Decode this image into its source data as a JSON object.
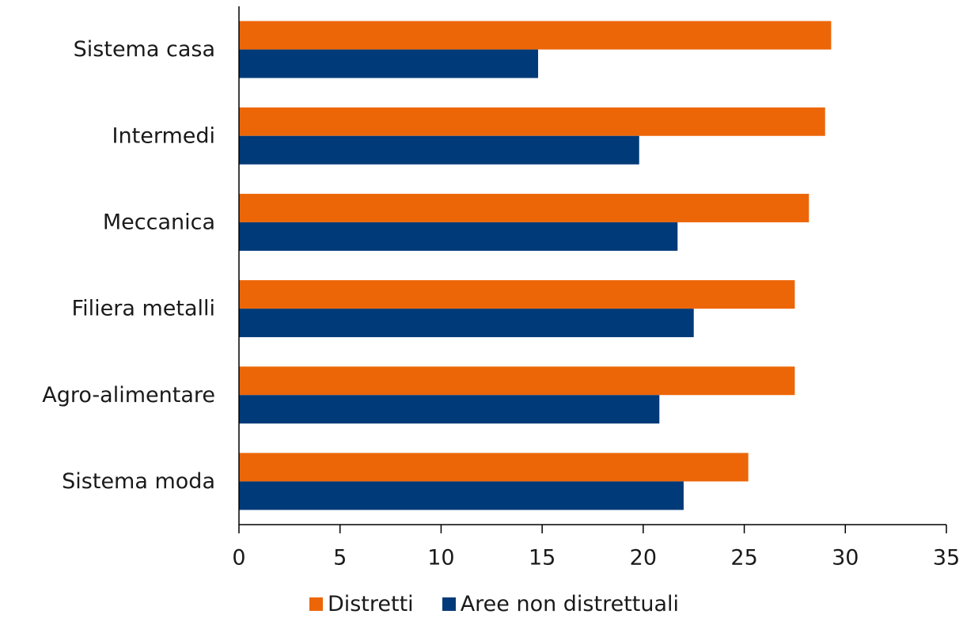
{
  "chart_data": {
    "type": "bar",
    "orientation": "horizontal",
    "categories": [
      "Sistema casa",
      "Intermedi",
      "Meccanica",
      "Filiera metalli",
      "Agro-alimentare",
      "Sistema moda"
    ],
    "series": [
      {
        "name": "Distretti",
        "color": "#ec6608",
        "values": [
          29.3,
          29.0,
          28.2,
          27.5,
          27.5,
          25.2
        ]
      },
      {
        "name": "Aree non distrettuali",
        "color": "#003a78",
        "values": [
          14.8,
          19.8,
          21.7,
          22.5,
          20.8,
          22.0
        ]
      }
    ],
    "xlim": [
      0,
      35
    ],
    "xticks": [
      "0",
      "5",
      "10",
      "15",
      "20",
      "25",
      "30",
      "35"
    ],
    "title": "",
    "xlabel": "",
    "ylabel": "",
    "grid": false,
    "legend_position": "bottom"
  }
}
